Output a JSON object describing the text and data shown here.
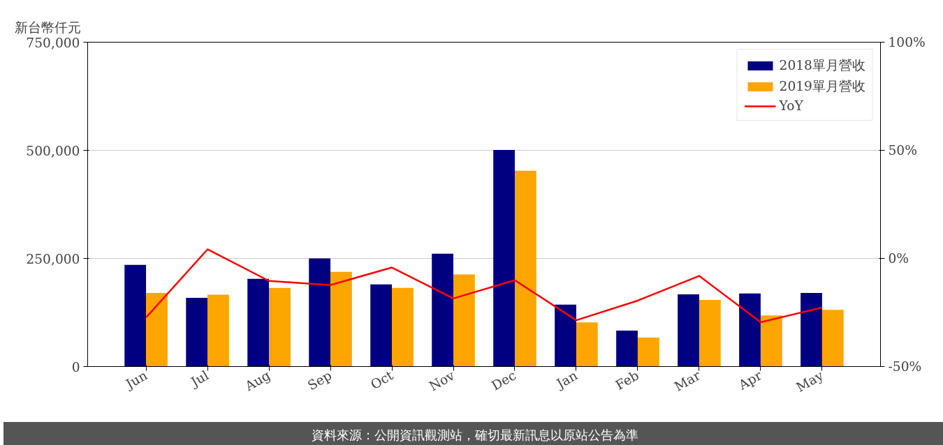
{
  "chart_data": {
    "type": "bar",
    "ylabel": "新台幣仟元",
    "categories": [
      "Jun",
      "Jul",
      "Aug",
      "Sep",
      "Oct",
      "Nov",
      "Dec",
      "Jan",
      "Feb",
      "Mar",
      "Apr",
      "May"
    ],
    "series": [
      {
        "name": "2018單月營收",
        "color": "#000080",
        "values": [
          235000,
          159000,
          203000,
          250000,
          190000,
          261000,
          501000,
          143000,
          83000,
          167000,
          169000,
          170000
        ]
      },
      {
        "name": "2019單月營收",
        "color": "#ffa500",
        "values": [
          170000,
          166000,
          182000,
          219000,
          182000,
          213000,
          453000,
          102000,
          67000,
          154000,
          118000,
          131000
        ]
      },
      {
        "name": "YoY",
        "type": "line",
        "axis": "y2",
        "color": "#ff0000",
        "values": [
          -27.3,
          4.2,
          -10.4,
          -12.3,
          -4.2,
          -18.5,
          -10.1,
          -28.6,
          -19.5,
          -8.1,
          -29.5,
          -22.7
        ]
      }
    ],
    "ylim": [
      0,
      750000
    ],
    "yticks": [
      {
        "value": 0,
        "label": "0"
      },
      {
        "value": 250000,
        "label": "250,000"
      },
      {
        "value": 500000,
        "label": "500,000"
      },
      {
        "value": 750000,
        "label": "750,000"
      }
    ],
    "y2lim": [
      -50,
      100
    ],
    "y2ticks": [
      {
        "value": -50,
        "label": "-50%"
      },
      {
        "value": 0,
        "label": "0%"
      },
      {
        "value": 50,
        "label": "50%"
      },
      {
        "value": 100,
        "label": "100%"
      }
    ],
    "grid": "y",
    "legend": "top right",
    "annotations": [
      "資料來源：公開資訊觀測站，確切最新訊息以原站公告為準"
    ]
  }
}
